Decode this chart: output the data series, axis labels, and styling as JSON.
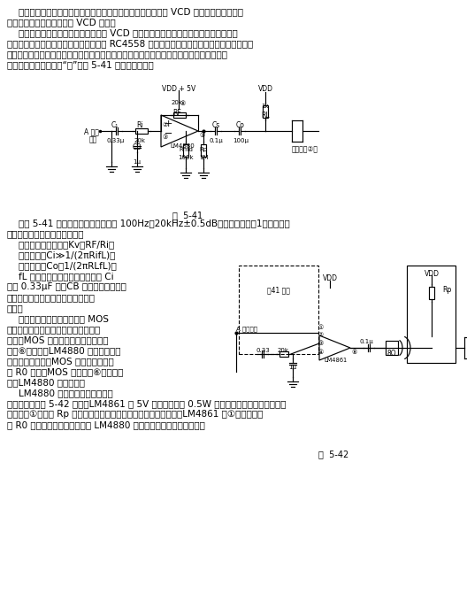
{
  "bg": "#ffffff",
  "fg": "#000000",
  "top_text": [
    "    本集成电路可应用为自动关断耳机放大器。本电路接到普及型 VCD 机的线路输出端，即",
    "可用优质耳机享受高质量的 VCD 音乐。",
    "    发烧友都知道将耳机直接插入普及型 VCD 的耳机插口收听，音质还不及优质磁带随身",
    "听。原因是这里的耳机放大电路几乎都用 RC4558 之类的电压放大型集成双运放，其输出阻抗",
    "高、重负载特性差，听感表现为高音刺耳，缺乏明亮感，低音频响范围和力度明显不足。如",
    "需耳机输出功能必须打“磨”。图 5-41 电路即是一例。"
  ],
  "mid_text_full": [
    "    按图 5-41 电路参数安装，频响可达 100Hz～20kHz±0.5dB，电压增益为－1。如需调整",
    "电路指标，可按下述公式设计：",
    "    电路电压放大倍数：Kv＝RF/Ri；",
    "    输入电容：Ci≫1/(2πRifL)；",
    "    输出电容：Co＞1/(2πRLfL)。"
  ],
  "mid_text_left": [
    "    fL 为要求的最低频率。另外，当 Ci",
    "大于 0.33μF 时，CB 也相应增大，以免",
    "出现开机冲击声和进一步提高电源抑",
    "制率。",
    "    图中自动关机电路是一只由 MOS",
    "场效应管实现的。当耳机插入时，触点",
    "断开，MOS 管栅极接高电平，管子导",
    "通，⑥脚接地，LM4880 进入放大工作",
    "状态。拔出耳机，MOS 管栅极通过触点",
    "和 R0 接地，MOS 管截止，⑥脚接高电",
    "平，LM4880 自动关闭。",
    "    LM4880 还可应用制成自动切换"
  ],
  "bot_text": [
    "功放电路。如图 5-42 所示，LM4861 在 5V 电压时能输出 0.5W 功率，接机内啱叭放音。插入",
    "耳机时，①脚通过 Rp 接到正电源上，啱叭电流自动关闭。拔出时，LM4861 的①脚通过触点",
    "和 R0 接地，进入工作状态，而 LM4880 却正好关断，互相交替工作。"
  ],
  "fig41_cap": "图  5-41",
  "fig42_cap": "图  5-42",
  "fs": 7.5,
  "lh": 12.0
}
